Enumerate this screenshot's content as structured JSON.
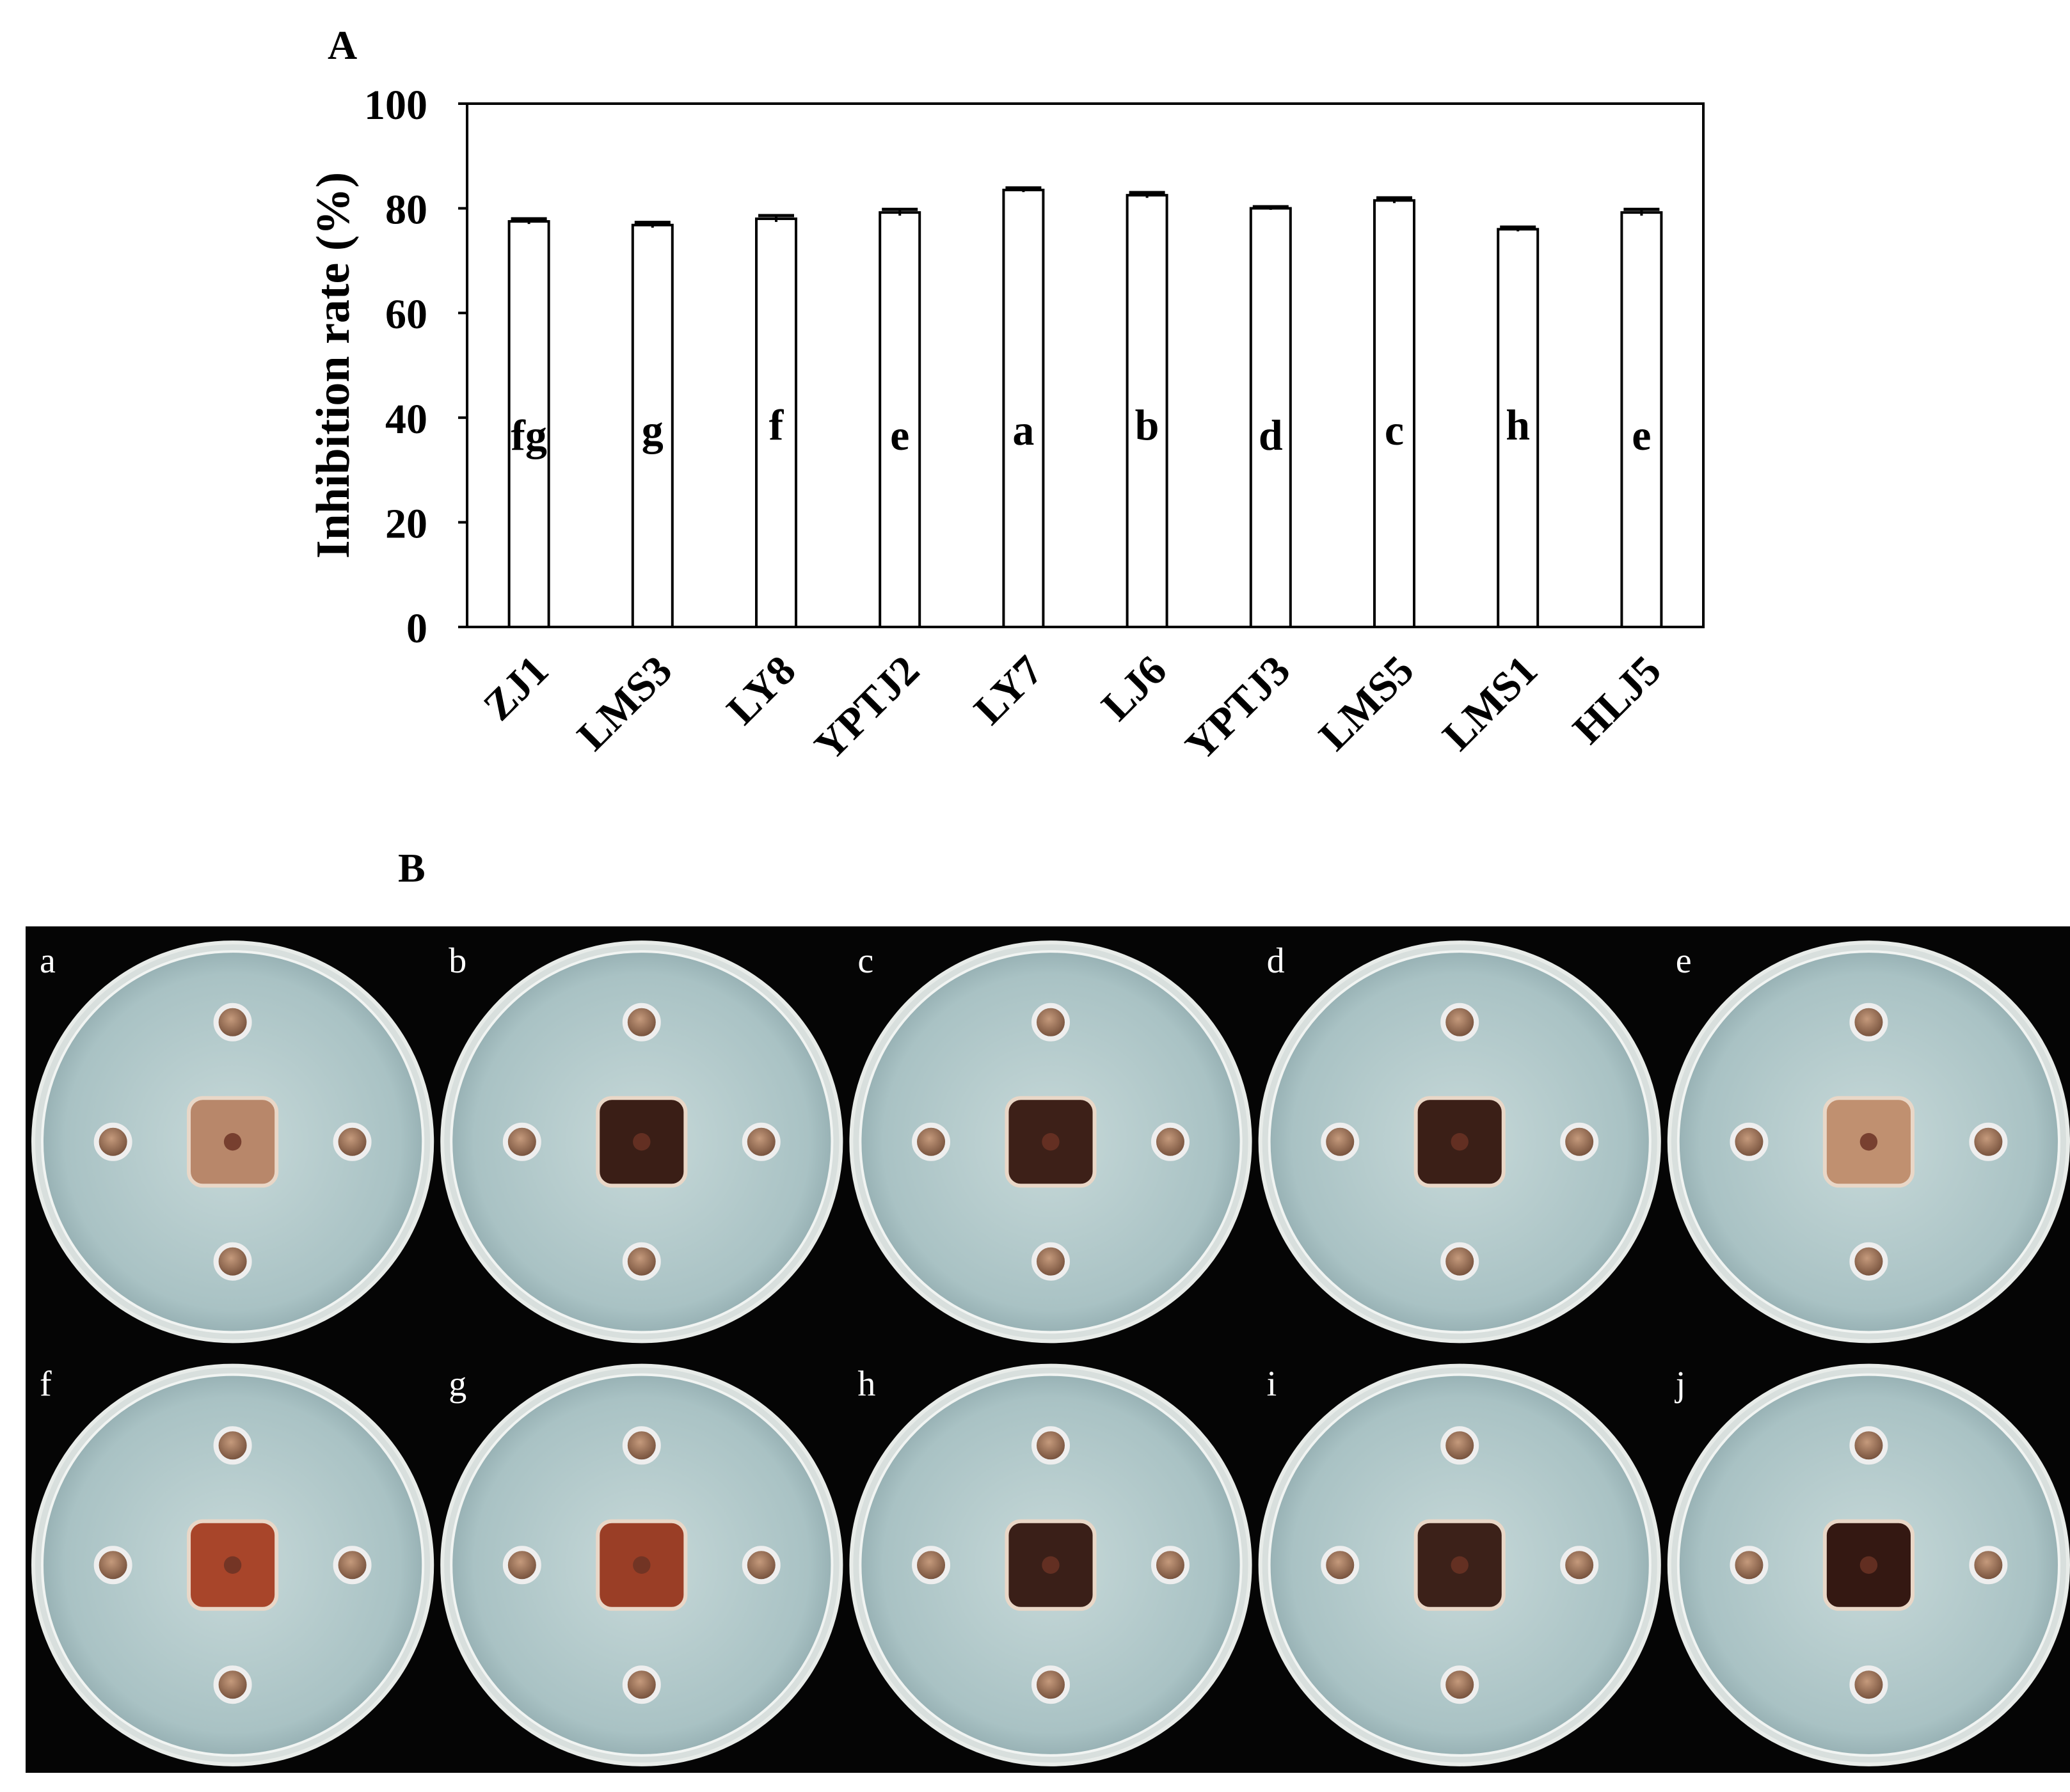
{
  "panel_a_label": "A",
  "panel_b_label": "B",
  "chart_data": {
    "type": "bar",
    "title": "",
    "xlabel": "",
    "ylabel": "Inhibition rate (%)",
    "ylim": [
      0,
      100
    ],
    "yticks": [
      "0",
      "20",
      "40",
      "60",
      "80",
      "100"
    ],
    "categories": [
      "ZJ1",
      "LMS3",
      "LY8",
      "YPTJ2",
      "LY7",
      "LJ6",
      "YPTJ3",
      "LMS5",
      "LMS1",
      "HLJ5"
    ],
    "values": [
      77.5,
      76.8,
      78.0,
      79.2,
      83.5,
      82.5,
      80.0,
      81.5,
      76.0,
      79.2
    ],
    "errors": [
      0.5,
      0.5,
      0.6,
      0.6,
      0.4,
      0.5,
      0.3,
      0.5,
      0.4,
      0.6
    ],
    "significance_letters": [
      "fg",
      "g",
      "f",
      "e",
      "a",
      "b",
      "d",
      "c",
      "h",
      "e"
    ],
    "grid": false,
    "legend": "none",
    "bar_fill": "#ffffff",
    "bar_stroke": "#000000"
  },
  "plates": {
    "labels": [
      "a",
      "b",
      "c",
      "d",
      "e",
      "f",
      "g",
      "h",
      "i",
      "j"
    ],
    "colony_colors": [
      "#b8876a",
      "#3a1e16",
      "#3d2018",
      "#3b1f17",
      "#c09070",
      "#a8452a",
      "#9a3e26",
      "#3a1f18",
      "#3c2119",
      "#341812"
    ],
    "agar_color": "#a9c2c4"
  }
}
